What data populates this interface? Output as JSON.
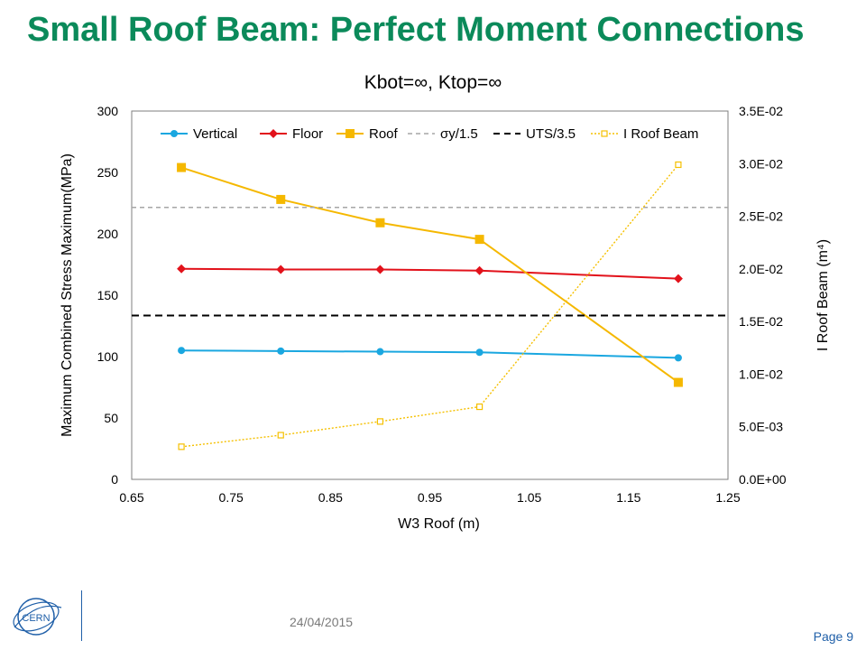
{
  "slide": {
    "title": "Small Roof Beam: Perfect Moment Connections",
    "date": "24/04/2015",
    "page": "Page 9",
    "logo_text": "CERN"
  },
  "colors": {
    "title": "#0b8a5a",
    "vertical": "#1aa7e0",
    "floor": "#e2121b",
    "roof": "#f5b800",
    "sigma": "#a6a6a6",
    "uts": "#000000",
    "iroof": "#f5c000"
  },
  "chart_data": {
    "type": "line",
    "title": "Kbot=∞, Ktop=∞",
    "xlabel": "W3 Roof (m)",
    "ylabel_words": [
      "Maximum",
      "Combined",
      "Stress",
      "Maximum(MPa)"
    ],
    "y2label": "I Roof Beam (m⁴)",
    "xlim": [
      0.65,
      1.25
    ],
    "ylim": [
      0,
      300
    ],
    "y2lim": [
      0,
      0.035
    ],
    "x_ticks": [
      "0.65",
      "0.75",
      "0.85",
      "0.95",
      "1.05",
      "1.15",
      "1.25"
    ],
    "x_tick_values": [
      0.65,
      0.75,
      0.85,
      0.95,
      1.05,
      1.15,
      1.25
    ],
    "y_ticks": [
      "0",
      "50",
      "100",
      "150",
      "200",
      "250",
      "300"
    ],
    "y_tick_values": [
      0,
      50,
      100,
      150,
      200,
      250,
      300
    ],
    "y2_ticks": [
      "0.0E+00",
      "5.0E-03",
      "1.0E-02",
      "1.5E-02",
      "2.0E-02",
      "2.5E-02",
      "3.0E-02",
      "3.5E-02"
    ],
    "y2_tick_values": [
      0,
      0.005,
      0.01,
      0.015,
      0.02,
      0.025,
      0.03,
      0.035
    ],
    "x": [
      0.7,
      0.8,
      0.9,
      1.0,
      1.2
    ],
    "series": [
      {
        "name": "Vertical",
        "axis": "left",
        "values": [
          105,
          104.5,
          104,
          103.5,
          99
        ]
      },
      {
        "name": "Floor",
        "axis": "left",
        "values": [
          171.5,
          171,
          171,
          170,
          163.5
        ]
      },
      {
        "name": "Roof",
        "axis": "left",
        "values": [
          254,
          228,
          209,
          195.5,
          79
        ]
      },
      {
        "name": "σy/1.5",
        "axis": "left",
        "constant": 221.5
      },
      {
        "name": "UTS/3.5",
        "axis": "left",
        "constant": 133.5
      },
      {
        "name": "I Roof Beam",
        "axis": "right",
        "values": [
          0.0031,
          0.0042,
          0.0055,
          0.0069,
          0.0299
        ]
      }
    ],
    "legend_position": "top-inside",
    "grid": false
  }
}
